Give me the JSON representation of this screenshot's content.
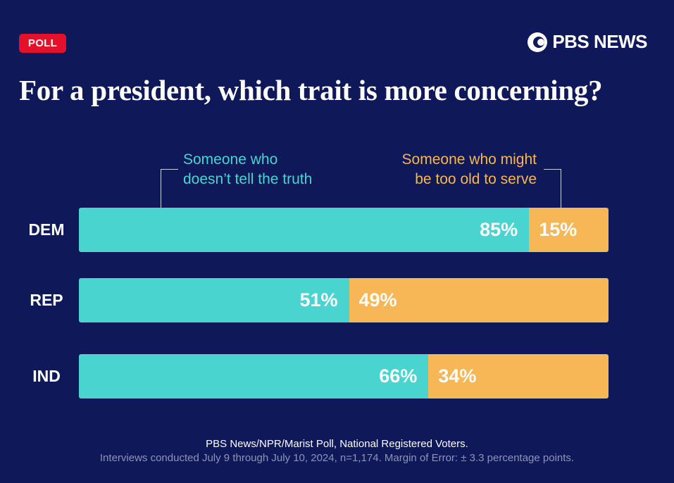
{
  "badge": "POLL",
  "brand": "PBS NEWS",
  "chart_data": {
    "type": "bar",
    "stacked": true,
    "orientation": "horizontal",
    "title": "For a president, which trait is more concerning?",
    "categories": [
      "DEM",
      "REP",
      "IND"
    ],
    "series": [
      {
        "name": "Someone who doesn’t tell the truth",
        "values": [
          85,
          51,
          66
        ],
        "color": "#4ad4cf"
      },
      {
        "name": "Someone who might be too old to serve",
        "values": [
          15,
          49,
          34
        ],
        "color": "#f7b757"
      }
    ],
    "value_suffix": "%",
    "legend_lines": [
      [
        "Someone who",
        "doesn’t tell the truth"
      ],
      [
        "Someone who might",
        "be too old to serve"
      ]
    ]
  },
  "source": "PBS News/NPR/Marist Poll, National Registered Voters.",
  "note": "Interviews conducted July 9 through July 10, 2024, n=1,174. Margin of Error: ± 3.3 percentage points.",
  "colors": {
    "background": "#0f1858",
    "badge": "#e5102a",
    "truth": "#4ad4cf",
    "old": "#f7b757"
  }
}
